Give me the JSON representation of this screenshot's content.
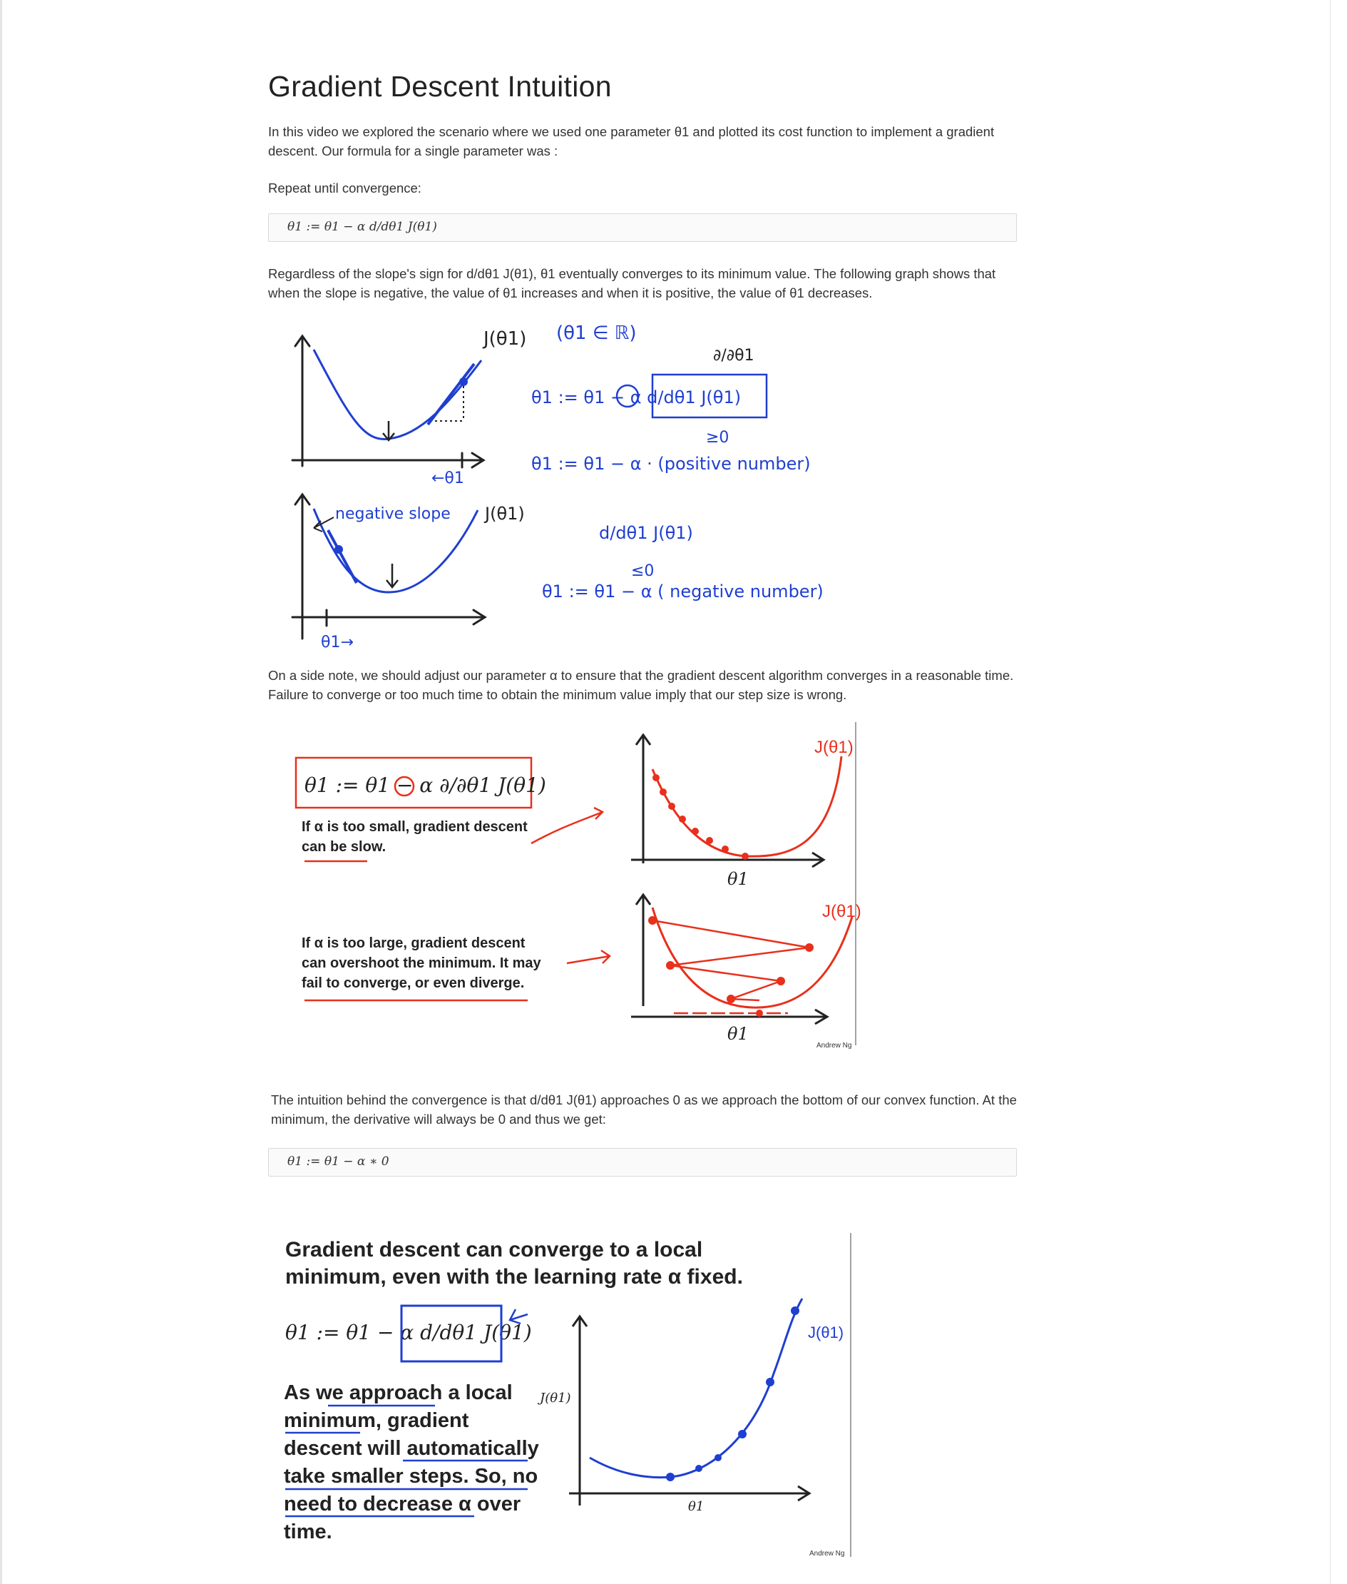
{
  "page": {
    "title": "Gradient Descent Intuition",
    "intro": "In this video we explored the scenario where we used one parameter θ1 and plotted its cost function to implement a gradient descent. Our formula for a single parameter was :",
    "repeat_label": "Repeat until convergence:",
    "formula_1": "θ1 := θ1 − α d/dθ1 J(θ1)",
    "slope_paragraph": "Regardless of the slope's sign for d/dθ1 J(θ1), θ1 eventually converges to its minimum value. The following graph shows that when the slope is negative, the value of θ1 increases and when it is positive, the value of θ1 decreases.",
    "alpha_paragraph": "On a side note, we should adjust our parameter α to ensure that the gradient descent algorithm converges in a reasonable time. Failure to converge or too much time to obtain the minimum value imply that our step size is wrong.",
    "convergence_paragraph": "The intuition behind the convergence is that d/dθ1 J(θ1) approaches 0 as we approach the bottom of our convex function. At the minimum, the derivative will always be 0 and thus we get:",
    "formula_2": "θ1 := θ1 − α ∗ 0"
  },
  "figure_1": {
    "top_curve_label": "J(θ1)",
    "domain_note": "(θ1 ∈ ℝ)",
    "partial": "∂/∂θ1",
    "update_rule": "θ1 := θ1 − α d/dθ1 J(θ1)",
    "geq_zero": "≥0",
    "positive_update": "θ1 := θ1 − α · (positive number)",
    "theta_arrow_top": "←θ1",
    "negative_slope": "negative slope",
    "bottom_curve_label": "J(θ1)",
    "derivative_bottom": "d/dθ1 J(θ1)",
    "leq_zero": "≤0",
    "negative_update": "θ1 := θ1 − α ( negative number)",
    "theta_arrow_bottom": "θ1→"
  },
  "figure_2": {
    "formula": "θ1 := θ1 − α ∂/∂θ1 J(θ1)",
    "small_text_1": "If α is too small, gradient descent",
    "small_text_2": "can be slow.",
    "large_text_1": "If α is too large, gradient descent",
    "large_text_2": "can overshoot the minimum. It may",
    "large_text_3": "fail to converge, or even diverge.",
    "curve_label_top": "J(θ1)",
    "curve_label_bottom": "J(θ1)",
    "axis_top": "θ1",
    "axis_bottom": "θ1",
    "credit": "Andrew Ng"
  },
  "figure_3": {
    "headline_1": "Gradient descent can converge to a local",
    "headline_2": "minimum, even with the learning rate α fixed.",
    "formula": "θ1 := θ1 − α d/dθ1 J(θ1)",
    "body_1": "As we approach a local",
    "body_2": "minimum, gradient",
    "body_3": "descent will automatically",
    "body_4": "take smaller steps. So, no",
    "body_5": "need to decrease α over",
    "body_6": "time.",
    "y_label": "J(θ1)",
    "x_label": "θ1",
    "curve_label": "J(θ1)",
    "credit": "Andrew Ng"
  },
  "colors": {
    "ink": "#222222",
    "blue_ink": "#1f3fd1",
    "red_ink": "#e8301c",
    "code_border": "#d9d9d9"
  }
}
